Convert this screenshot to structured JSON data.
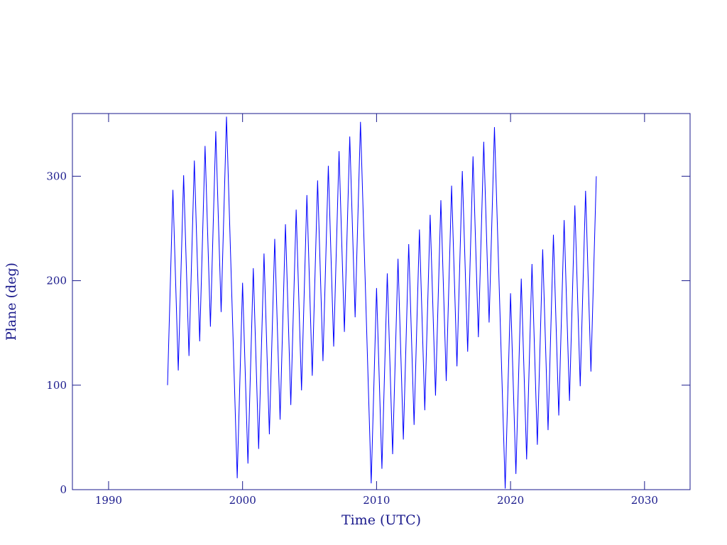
{
  "chart_data": {
    "type": "line",
    "xlabel": "Time (UTC)",
    "ylabel": "Plane (deg)",
    "xlim": [
      1987.3,
      2033.4
    ],
    "ylim": [
      0,
      360
    ],
    "xticks": [
      1990,
      2000,
      2010,
      2020,
      2030
    ],
    "yticks": [
      0,
      100,
      200,
      300
    ],
    "grid": false,
    "axis_color": "#1a1a8c",
    "series": [
      {
        "color": "#0000ff",
        "x": [
          1994.4,
          1994.8,
          1995.2,
          1995.6,
          1996,
          1996.4,
          1996.8,
          1997.2,
          1997.6,
          1998,
          1998.4,
          1998.8,
          1999.2,
          1999.6,
          2000,
          2000.4,
          2000.8,
          2001.2,
          2001.6,
          2002,
          2002.4,
          2002.8,
          2003.2,
          2003.6,
          2004,
          2004.4,
          2004.8,
          2005.2,
          2005.6,
          2006,
          2006.4,
          2006.8,
          2007.2,
          2007.6,
          2008,
          2008.4,
          2008.8,
          2009.2,
          2009.6,
          2010,
          2010.4,
          2010.8,
          2011.2,
          2011.6,
          2012,
          2012.4,
          2012.8,
          2013.2,
          2013.6,
          2014,
          2014.4,
          2014.8,
          2015.2,
          2015.6,
          2016,
          2016.4,
          2016.8,
          2017.2,
          2017.6,
          2018,
          2018.4,
          2018.8,
          2019.2,
          2019.6,
          2020,
          2020.4,
          2020.8,
          2021.2,
          2021.6,
          2022,
          2022.4,
          2022.8,
          2023.2,
          2023.6,
          2024,
          2024.4,
          2024.8,
          2025.2,
          2025.6,
          2026,
          2026.4
        ],
        "values": [
          100,
          287,
          114,
          301,
          128,
          315,
          142,
          329,
          156,
          343,
          170,
          357,
          184,
          11,
          198,
          25,
          212,
          39,
          226,
          53,
          240,
          67,
          254,
          81,
          268,
          95,
          282,
          109,
          296,
          123,
          310,
          137,
          324,
          151,
          338,
          165,
          352,
          179,
          6,
          193,
          20,
          207,
          34,
          221,
          48,
          235,
          62,
          249,
          76,
          263,
          90,
          277,
          104,
          291,
          118,
          305,
          132,
          319,
          146,
          333,
          160,
          347,
          174,
          1,
          188,
          15,
          202,
          29,
          216,
          43,
          230,
          57,
          244,
          71,
          258,
          85,
          272,
          99,
          286,
          113,
          300
        ]
      }
    ]
  }
}
